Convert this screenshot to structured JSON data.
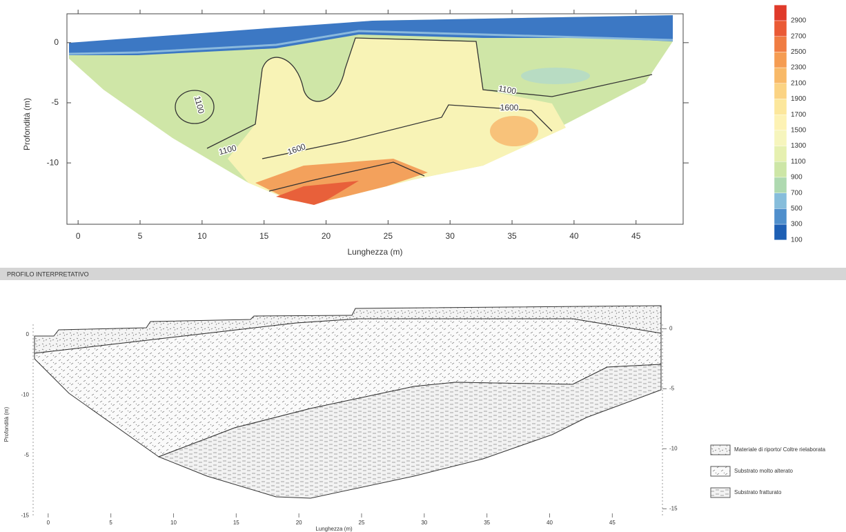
{
  "chart_data": [
    {
      "type": "contour",
      "xlabel": "Lunghezza (m)",
      "ylabel": "Profondità (m)",
      "xlim": [
        -0.9,
        48.8
      ],
      "ylim": [
        -15.1,
        2.4
      ],
      "xticks": [
        0,
        5,
        10,
        15,
        20,
        25,
        30,
        35,
        40,
        45
      ],
      "yticks": [
        0,
        -5,
        -10
      ],
      "contour_labels": [
        "1100",
        "1100",
        "1600",
        "1100",
        "1600"
      ],
      "colorbar": {
        "levels": [
          2900,
          2700,
          2500,
          2300,
          2100,
          1900,
          1700,
          1500,
          1300,
          1100,
          900,
          700,
          500,
          300,
          100
        ],
        "colors": [
          "#e03a2a",
          "#ea5a35",
          "#f07c42",
          "#f59c52",
          "#f8b968",
          "#fbd383",
          "#fce79c",
          "#fdf2b4",
          "#f6f5bd",
          "#e6f0b0",
          "#cde6a6",
          "#aed9b0",
          "#86bddb",
          "#4f8fcc",
          "#1d5fb4"
        ]
      }
    },
    {
      "type": "section",
      "title": "PROFILO INTERPRETATIVO",
      "xlabel": "Lunghezza (m)",
      "ylabel": "Profondità (m)",
      "xlim": [
        -1.2,
        49.0
      ],
      "ylim": [
        -16.3,
        2.1
      ],
      "xticks": [
        0,
        5,
        10,
        15,
        20,
        25,
        30,
        35,
        40,
        45
      ],
      "yticks": [
        0,
        -5,
        -10,
        -15
      ],
      "y_left_labels": [
        "0",
        "-10",
        "-5",
        "-15"
      ],
      "legend": [
        "Materiale di riporto/ Coltre rielaborata",
        "Substrato molto alterato",
        "Substrato fratturato"
      ]
    }
  ]
}
